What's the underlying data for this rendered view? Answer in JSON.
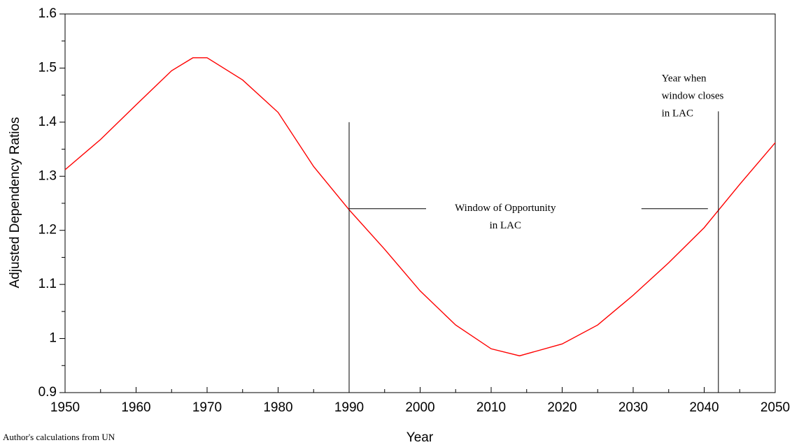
{
  "chart_data": {
    "type": "line",
    "y_label": "Adjusted Dependency Ratios",
    "x_label": "Year",
    "source": "Author's calculations from UN",
    "x": [
      1950,
      1955,
      1960,
      1965,
      1968,
      1970,
      1975,
      1980,
      1985,
      1990,
      1995,
      2000,
      2005,
      2010,
      2014,
      2020,
      2025,
      2030,
      2035,
      2040,
      2045,
      2050
    ],
    "series": [
      {
        "color": "#ff0000",
        "values": [
          1.312,
          1.368,
          1.432,
          1.495,
          1.519,
          1.519,
          1.478,
          1.418,
          1.318,
          1.238,
          1.165,
          1.088,
          1.025,
          0.981,
          0.968,
          0.99,
          1.025,
          1.08,
          1.14,
          1.205,
          1.285,
          1.362
        ]
      }
    ],
    "xlim": [
      1950,
      2050
    ],
    "xticks": [
      1950,
      1960,
      1970,
      1980,
      1990,
      2000,
      2010,
      2020,
      2030,
      2040,
      2050
    ],
    "ylim": [
      0.9,
      1.6
    ],
    "yticks": [
      0.9,
      1,
      1.1,
      1.2,
      1.3,
      1.4,
      1.5,
      1.6
    ],
    "vlines": [
      {
        "x": 1990,
        "top": 1.4
      },
      {
        "x": 2042,
        "top": 1.42
      }
    ],
    "window_level": 1.24,
    "annotations": [
      {
        "lines": [
          "Window of Opportunity",
          "in LAC"
        ],
        "x": 2012,
        "y": 1.24
      },
      {
        "lines": [
          "Year when",
          "window closes",
          "in LAC"
        ],
        "x": 2034,
        "y": 1.48
      }
    ]
  }
}
